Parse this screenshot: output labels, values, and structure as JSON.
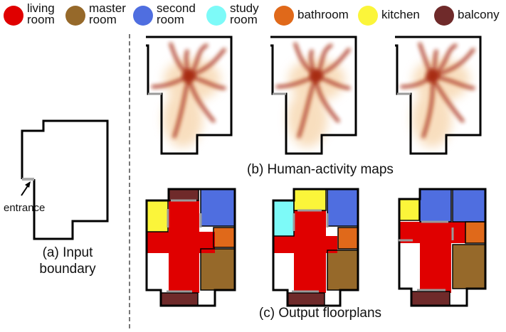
{
  "legend": [
    {
      "label": "living\nroom",
      "color": "#e00000"
    },
    {
      "label": "master\nroom",
      "color": "#96692a"
    },
    {
      "label": "second\nroom",
      "color": "#4f6ee0"
    },
    {
      "label": "study\nroom",
      "color": "#7dfaf8"
    },
    {
      "label": "bathroom",
      "color": "#e0691a"
    },
    {
      "label": "kitchen",
      "color": "#fbf53a"
    },
    {
      "label": "balcony",
      "color": "#6f2a2a"
    }
  ],
  "input": {
    "entrance_label": "entrance",
    "caption_line1": "(a) Input",
    "caption_line2": "boundary"
  },
  "activity_caption": "(b) Human-activity maps",
  "floorplan_caption": "(c) Output floorplans",
  "colors": {
    "wall": "#000000",
    "door": "#9a9a9a",
    "heat": "#a5260c",
    "heat_light": "#f3c48a"
  }
}
